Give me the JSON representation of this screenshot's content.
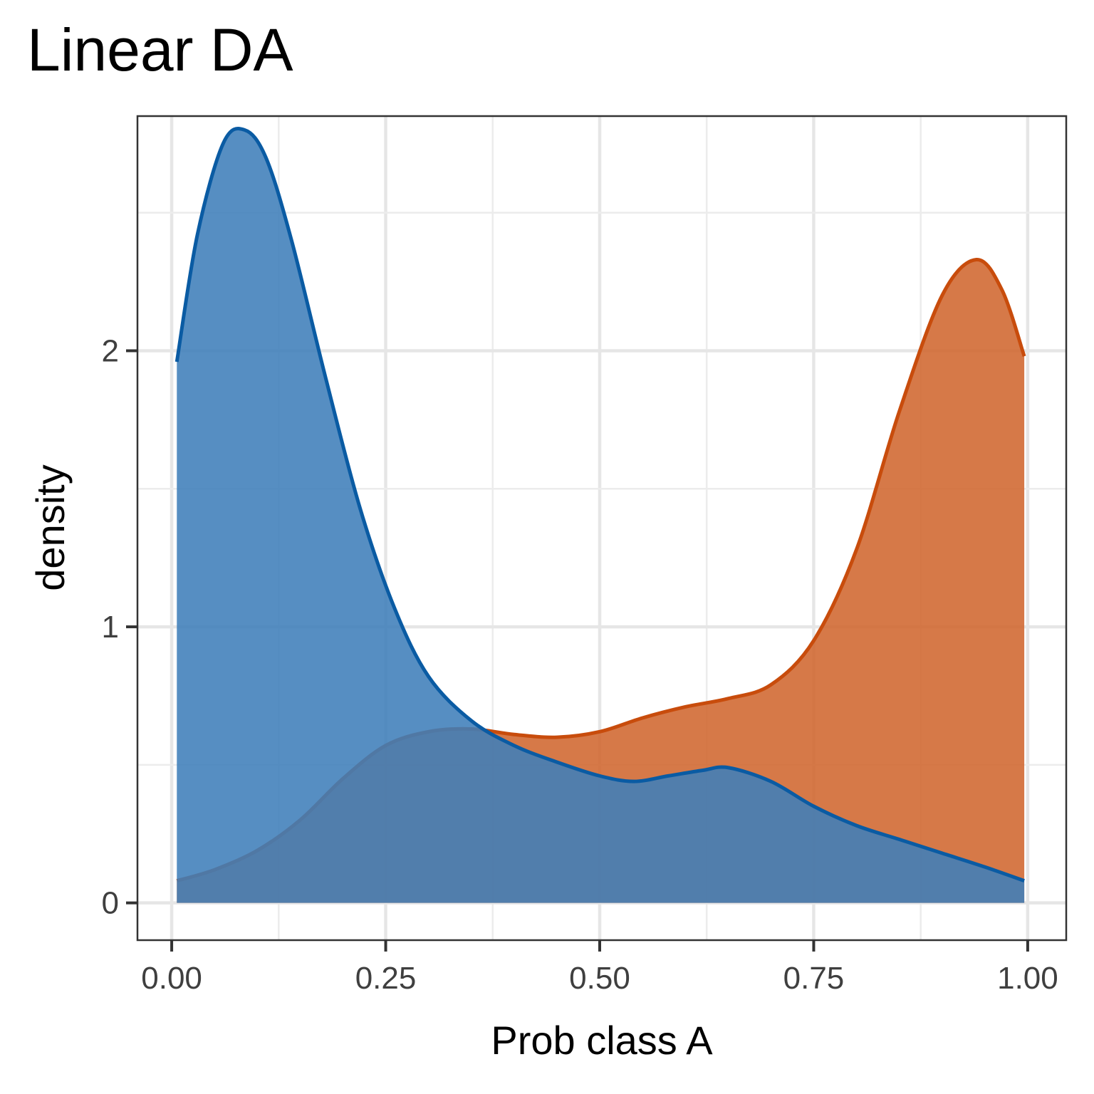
{
  "chart_data": {
    "type": "area",
    "title": "Linear DA",
    "xlabel": "Prob class A",
    "ylabel": "density",
    "xlim": [
      -0.04,
      1.045
    ],
    "ylim": [
      -0.135,
      2.85
    ],
    "x_ticks": [
      0,
      0.25,
      0.5,
      0.75,
      1
    ],
    "x_tick_labels": [
      "0.00",
      "0.25",
      "0.50",
      "0.75",
      "1.00"
    ],
    "y_ticks": [
      0,
      1,
      2
    ],
    "y_tick_labels": [
      "0",
      "1",
      "2"
    ],
    "grid": true,
    "series": [
      {
        "fill": "#D0672F",
        "stroke": "#C84C0C",
        "x": [
          0.006,
          0.05,
          0.1,
          0.15,
          0.2,
          0.25,
          0.3,
          0.35,
          0.4,
          0.45,
          0.5,
          0.55,
          0.6,
          0.65,
          0.7,
          0.75,
          0.8,
          0.85,
          0.9,
          0.94,
          0.97,
          0.996
        ],
        "y": [
          0.08,
          0.12,
          0.19,
          0.3,
          0.45,
          0.57,
          0.62,
          0.63,
          0.61,
          0.6,
          0.62,
          0.67,
          0.71,
          0.74,
          0.79,
          0.95,
          1.28,
          1.78,
          2.2,
          2.33,
          2.22,
          1.98
        ]
      },
      {
        "fill": "#3F7EBA",
        "stroke": "#0A5BA3",
        "x": [
          0.006,
          0.03,
          0.06,
          0.085,
          0.11,
          0.14,
          0.18,
          0.22,
          0.26,
          0.3,
          0.35,
          0.4,
          0.45,
          0.5,
          0.54,
          0.58,
          0.62,
          0.65,
          0.7,
          0.75,
          0.8,
          0.85,
          0.9,
          0.95,
          0.996
        ],
        "y": [
          1.96,
          2.42,
          2.75,
          2.8,
          2.7,
          2.4,
          1.9,
          1.43,
          1.07,
          0.82,
          0.66,
          0.57,
          0.51,
          0.46,
          0.44,
          0.46,
          0.48,
          0.49,
          0.44,
          0.35,
          0.28,
          0.23,
          0.18,
          0.13,
          0.08
        ]
      }
    ]
  }
}
